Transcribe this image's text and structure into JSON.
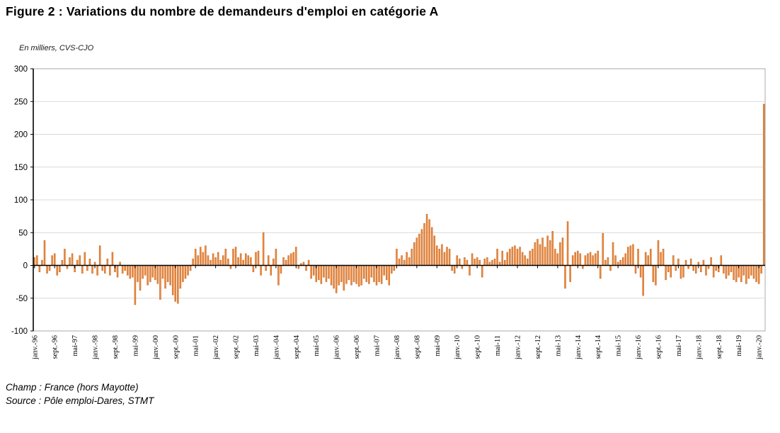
{
  "page": {
    "title": "Figure 2 : Variations du nombre de demandeurs d'emploi en catégorie A",
    "footer": {
      "champ": "Champ : France (hors Mayotte)",
      "source": "Source : Pôle emploi-Dares, STMT"
    }
  },
  "chart_data": {
    "type": "bar",
    "title": "Figure 2 : Variations du nombre de demandeurs d'emploi en catégorie A",
    "units_label": "En milliers,  CVS-CJO",
    "ylabel": "",
    "xlabel": "",
    "ylim": [
      -100,
      300
    ],
    "yticks": [
      300,
      250,
      200,
      150,
      100,
      50,
      0,
      -50,
      -100
    ],
    "grid": "horizontal",
    "legend": "none",
    "frequency": "monthly",
    "x_start": "janv.-96",
    "x_end": "mars-20",
    "xtick_every": 8,
    "xtick_labels": [
      "janv.-96",
      "sept.-96",
      "mai-97",
      "janv.-98",
      "sept.-98",
      "mai-99",
      "janv.-00",
      "sept.-00",
      "mai-01",
      "janv.-02",
      "sept.-02",
      "mai-03",
      "janv.-04",
      "sept.-04",
      "mai-05",
      "janv.-06",
      "sept.-06",
      "mai-07",
      "janv.-08",
      "sept.-08",
      "mai-09",
      "janv.-10",
      "sept.-10",
      "mai-11",
      "janv.-12",
      "sept.-12",
      "mai-13",
      "janv.-14",
      "sept.-14",
      "mai-15",
      "janv.-16",
      "sept.-16",
      "mai-17",
      "janv.-18",
      "sept.-18",
      "mai-19",
      "janv.-20"
    ],
    "bar_color": "#EE8B3E",
    "bar_edge_color": "#C2611C",
    "axis_color": "#000000",
    "grid_color": "#d9d9d9",
    "border_color": "#ababab",
    "values": [
      12,
      15,
      -10,
      8,
      38,
      -12,
      -8,
      15,
      18,
      -15,
      -10,
      8,
      25,
      -5,
      12,
      18,
      -10,
      8,
      15,
      -12,
      20,
      -8,
      10,
      -12,
      5,
      -15,
      30,
      -8,
      -12,
      10,
      -15,
      20,
      -10,
      -18,
      5,
      -12,
      -8,
      -15,
      -20,
      -18,
      -60,
      -25,
      -38,
      -20,
      -15,
      -30,
      -25,
      -18,
      -22,
      -28,
      -52,
      -20,
      -35,
      -25,
      -30,
      -45,
      -55,
      -58,
      -35,
      -25,
      -20,
      -15,
      -8,
      10,
      25,
      15,
      28,
      20,
      30,
      15,
      8,
      18,
      12,
      20,
      8,
      15,
      25,
      10,
      -5,
      25,
      28,
      12,
      18,
      8,
      18,
      15,
      12,
      -10,
      20,
      22,
      -15,
      50,
      -8,
      15,
      -15,
      10,
      25,
      -30,
      -12,
      12,
      8,
      15,
      18,
      20,
      28,
      -5,
      3,
      5,
      -8,
      8,
      -20,
      -15,
      -25,
      -22,
      -28,
      -18,
      -25,
      -20,
      -30,
      -35,
      -42,
      -30,
      -25,
      -38,
      -28,
      -22,
      -30,
      -25,
      -28,
      -32,
      -30,
      -20,
      -25,
      -28,
      -18,
      -25,
      -30,
      -25,
      -28,
      -15,
      -22,
      -30,
      -12,
      -8,
      25,
      10,
      15,
      8,
      20,
      12,
      25,
      35,
      42,
      48,
      55,
      64,
      78,
      70,
      58,
      45,
      30,
      25,
      32,
      20,
      28,
      25,
      -8,
      -12,
      15,
      10,
      -5,
      12,
      8,
      -15,
      18,
      10,
      12,
      8,
      -18,
      10,
      12,
      5,
      8,
      10,
      25,
      5,
      22,
      8,
      20,
      25,
      28,
      30,
      25,
      28,
      20,
      15,
      10,
      22,
      25,
      35,
      40,
      32,
      42,
      28,
      45,
      38,
      52,
      25,
      18,
      35,
      42,
      -35,
      67,
      -25,
      15,
      20,
      22,
      18,
      -5,
      15,
      18,
      20,
      15,
      18,
      22,
      -20,
      49,
      8,
      12,
      -8,
      35,
      15,
      5,
      8,
      12,
      18,
      28,
      30,
      32,
      -12,
      25,
      -18,
      -46,
      20,
      15,
      25,
      -25,
      -30,
      38,
      20,
      25,
      -22,
      -10,
      -18,
      15,
      -8,
      10,
      -20,
      -18,
      8,
      -5,
      10,
      -8,
      -12,
      5,
      -10,
      8,
      -15,
      -5,
      12,
      -18,
      -8,
      -10,
      15,
      -12,
      -20,
      -15,
      -10,
      -22,
      -25,
      -18,
      -25,
      -15,
      -28,
      -20,
      -15,
      -20,
      -25,
      -28,
      -12,
      246
    ]
  }
}
